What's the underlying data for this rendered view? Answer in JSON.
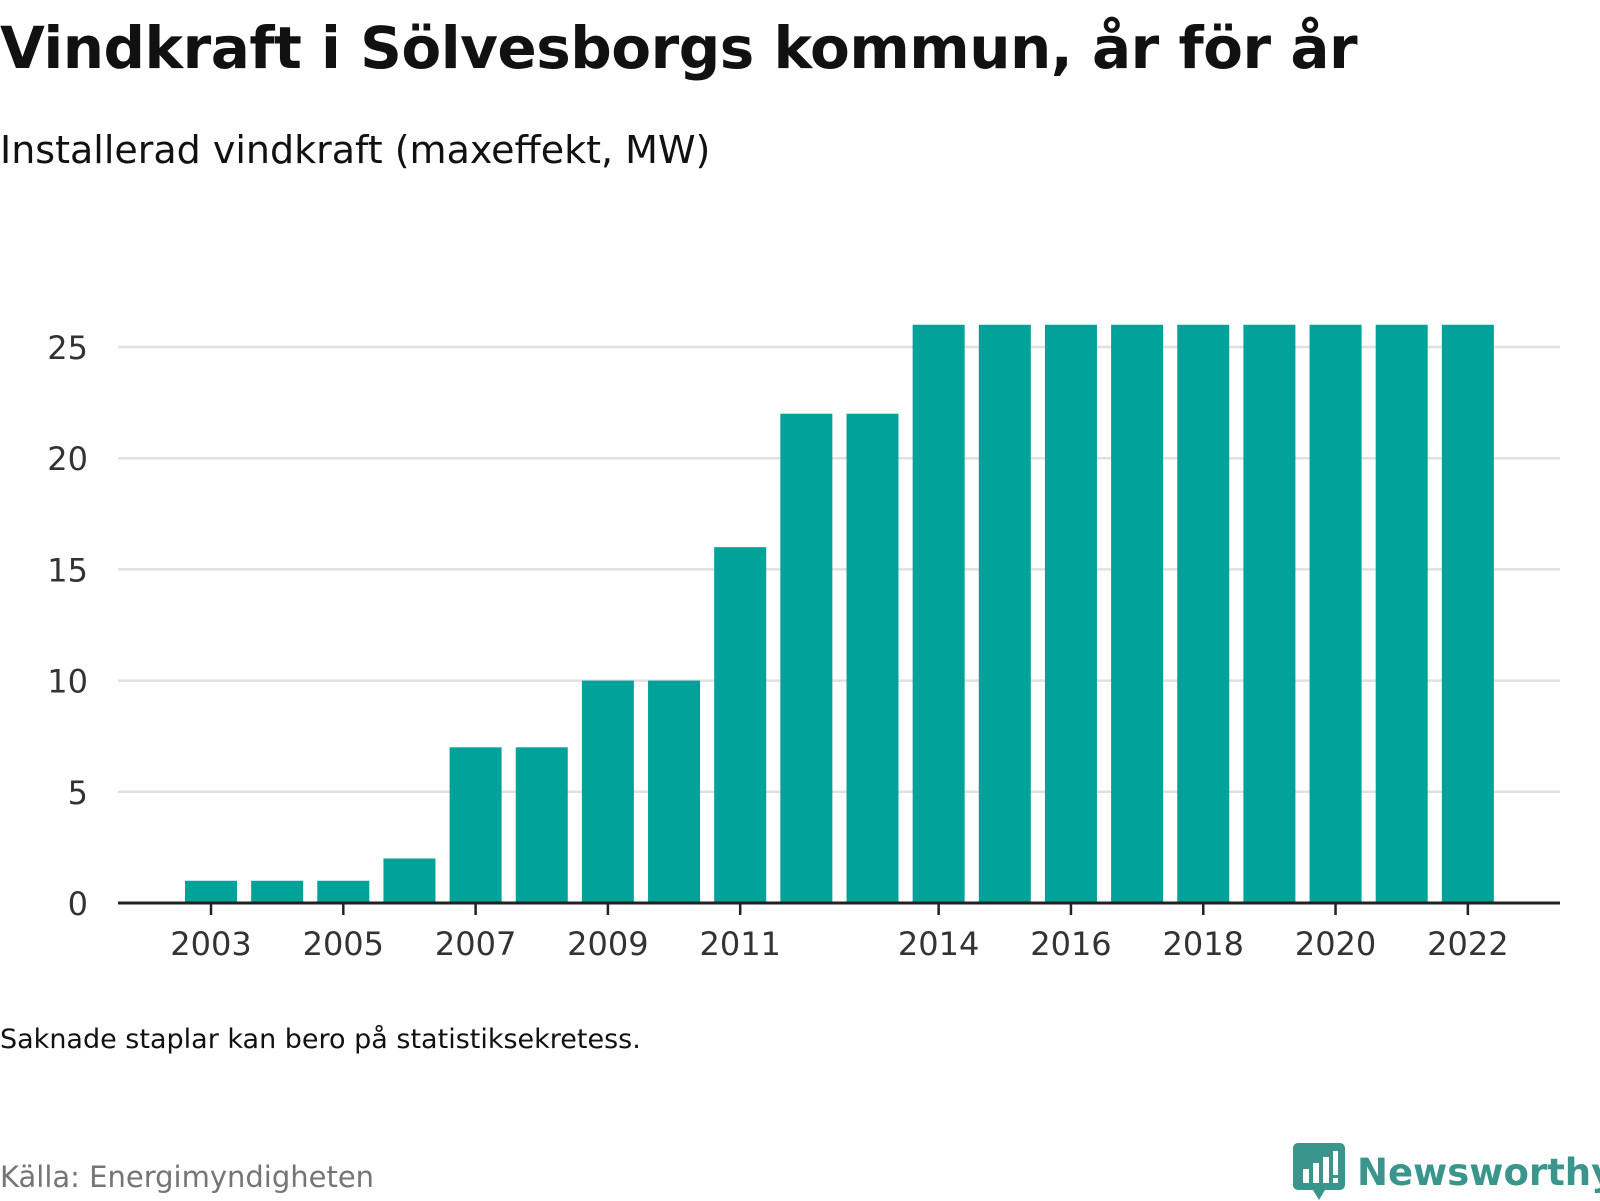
{
  "title": "Vindkraft i Sölvesborgs kommun, år för år",
  "subtitle": "Installerad vindkraft (maxeffekt, MW)",
  "note": "Saknade staplar kan bero på statistiksekretess.",
  "source": "Källa: Energimyndigheten",
  "brand": {
    "name": "Newsworthy",
    "icon": "newsworthy-logo-icon"
  },
  "colors": {
    "bar": "#00a29a",
    "grid": "#e0e0e0",
    "axis": "#222222",
    "brand": "#3a958c"
  },
  "chart_data": {
    "type": "bar",
    "x": [
      2003,
      2004,
      2005,
      2006,
      2007,
      2008,
      2009,
      2010,
      2011,
      2012,
      2013,
      2014,
      2015,
      2016,
      2017,
      2018,
      2019,
      2020,
      2021,
      2022
    ],
    "values": [
      1,
      1,
      1,
      2,
      7,
      7,
      10,
      10,
      16,
      22,
      22,
      26,
      26,
      26,
      26,
      26,
      26,
      26,
      26,
      26
    ],
    "x_tick_labels": [
      "2003",
      "2005",
      "2007",
      "2009",
      "2011",
      "2014",
      "2016",
      "2018",
      "2020",
      "2022"
    ],
    "y_ticks": [
      0,
      5,
      10,
      15,
      20,
      25
    ],
    "ylim": [
      0,
      26
    ],
    "grid": true,
    "xlabel": "",
    "ylabel": ""
  }
}
